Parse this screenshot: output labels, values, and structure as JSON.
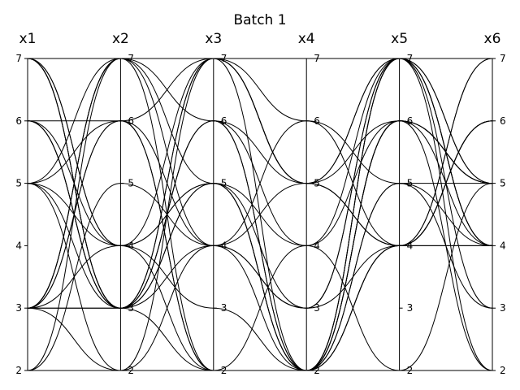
{
  "chart_data": {
    "type": "parallel_coordinates",
    "title": "Batch 1",
    "axes": [
      "x1",
      "x2",
      "x3",
      "x4",
      "x5",
      "x6"
    ],
    "ylim": [
      2,
      7
    ],
    "ticks": [
      "2",
      "3",
      "4",
      "5",
      "6",
      "7"
    ],
    "grid": false,
    "line_color": "#000000",
    "lines": [
      [
        7,
        3,
        7,
        5,
        4,
        4
      ],
      [
        7,
        3,
        6,
        5,
        7,
        4
      ],
      [
        7,
        3,
        2,
        2,
        7,
        5
      ],
      [
        7,
        4,
        7,
        6,
        4,
        4
      ],
      [
        6,
        3,
        5,
        2,
        7,
        4
      ],
      [
        6,
        6,
        7,
        5,
        7,
        3
      ],
      [
        6,
        4,
        2,
        2,
        6,
        5
      ],
      [
        6,
        3,
        4,
        2,
        5,
        4
      ],
      [
        5,
        7,
        5,
        2,
        6,
        2
      ],
      [
        5,
        3,
        7,
        5,
        4,
        6
      ],
      [
        5,
        2,
        4,
        5,
        6,
        5
      ],
      [
        5,
        4,
        5,
        2,
        7,
        4
      ],
      [
        3,
        7,
        2,
        2,
        4,
        7
      ],
      [
        3,
        6,
        4,
        3,
        7,
        4
      ],
      [
        3,
        7,
        4,
        6,
        5,
        3
      ],
      [
        3,
        3,
        6,
        2,
        4,
        6
      ],
      [
        3,
        4,
        3,
        2,
        6,
        5
      ],
      [
        3,
        6,
        2,
        4,
        7,
        5
      ],
      [
        3,
        2,
        7,
        2,
        6,
        4
      ],
      [
        2,
        7,
        7,
        5,
        4,
        6
      ],
      [
        2,
        5,
        4,
        3,
        4,
        7
      ],
      [
        6,
        3,
        6,
        4,
        2,
        5
      ],
      [
        3,
        3,
        5,
        4,
        6,
        5
      ],
      [
        7,
        4,
        5,
        3,
        7,
        2
      ],
      [
        5,
        6,
        2,
        2,
        5,
        5
      ],
      [
        3,
        7,
        6,
        2,
        4,
        6
      ]
    ]
  }
}
